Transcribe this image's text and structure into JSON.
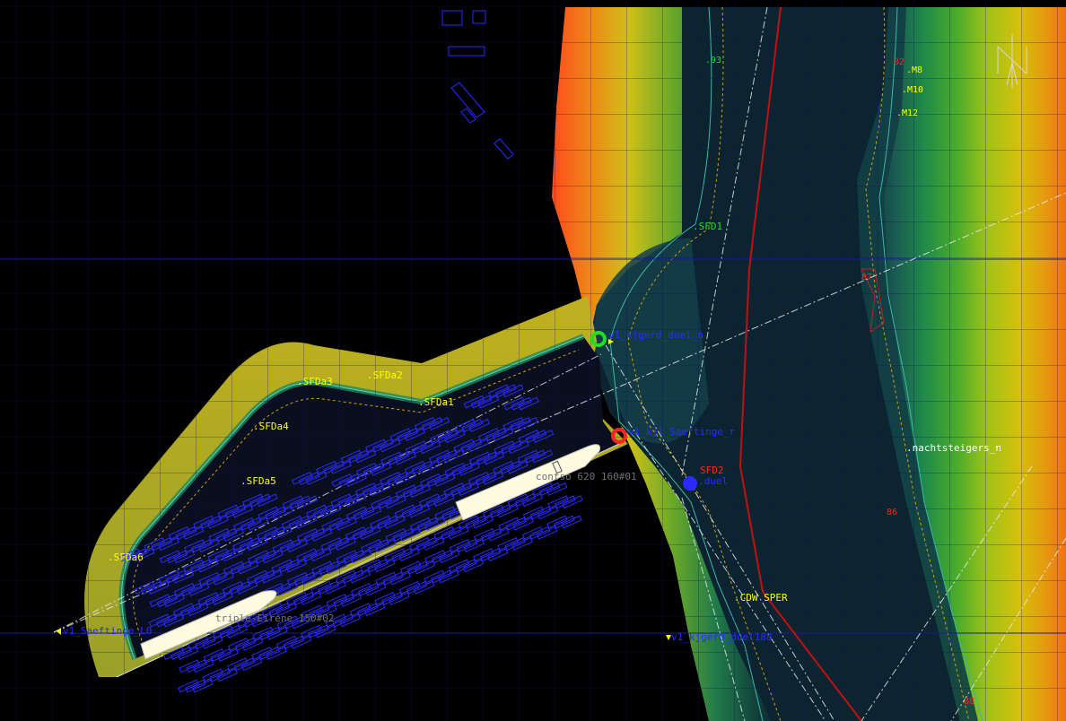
{
  "labels": {
    "buoys_yellow": {
      "sfda1": ".SFDa1",
      "sfda2": ".SFDa2",
      "sfda3": ".SFDa3",
      "sfda4": ".SFDa4",
      "sfda5": ".SFDa5",
      "sfda6": ".SFDa6",
      "m8": ".M8",
      "m10": ".M10",
      "m12": ".M12",
      "cdw_sper": ".CDW SPER"
    },
    "buoys_green": {
      "g93": ".93",
      "sfd1": ".SFD1"
    },
    "buoys_red": {
      "r82": "82",
      "r87": "87",
      "r86": "86",
      "r88": "88",
      "sfd2": "SFD2"
    },
    "waypoints_blue": {
      "saeftinge_l0": "v1_Saeftinge_L0",
      "kjgerd": "v1_kjgerd_duel188",
      "green_wp": "v1_kjgerd_duel_n",
      "red_wp": "v1_kjl_Saeftinge_r",
      "blue_wp": ".duel"
    },
    "place_white": {
      "nachtsteigers": ".nachtsteigers_n"
    },
    "ships": {
      "ship1": "contso 620 160#01",
      "ship2": "triple-Eirene 150#02"
    },
    "north": "N"
  },
  "colors": {
    "water_deep": "#0b1e2a",
    "dock_water": "#0a0f20",
    "land_black": "#000000",
    "grid": "#10108a",
    "channel_line": "#c01010",
    "buoy_yellow": "#ffff00",
    "buoy_green": "#22dd22",
    "buoy_red": "#ff2222",
    "waypoint_blue": "#2a2aff",
    "ship_fill": "#fffbe0"
  }
}
